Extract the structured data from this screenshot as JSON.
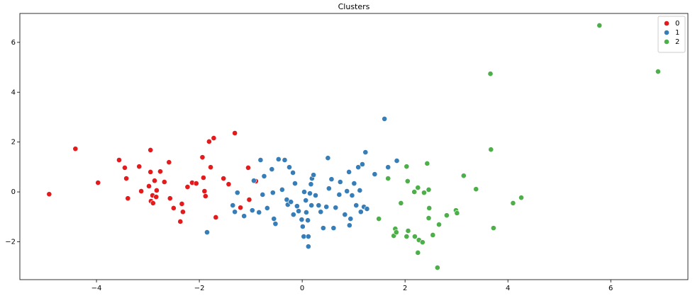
{
  "chart_data": {
    "type": "scatter",
    "title": "Clusters",
    "xlim": [
      -5.49,
      7.5
    ],
    "ylim": [
      -3.52,
      7.16
    ],
    "xticks": [
      {
        "value": -4,
        "label": "−4"
      },
      {
        "value": -2,
        "label": "−2"
      },
      0,
      2,
      4,
      6
    ],
    "yticks": [
      {
        "value": -2,
        "label": "−2"
      },
      0,
      2,
      4,
      6
    ],
    "grid": false,
    "legend": "upper right",
    "series": [
      {
        "name": "0",
        "color": "#e41a1c",
        "x": [
          -4.92,
          -4.41,
          -3.97,
          -3.56,
          -3.45,
          -3.42,
          -3.39,
          -3.17,
          -3.13,
          -2.95,
          -2.98,
          -2.95,
          -2.91,
          -2.94,
          -2.87,
          -2.9,
          -2.83,
          -2.84,
          -2.76,
          -2.59,
          -2.68,
          -2.57,
          -2.5,
          -2.37,
          -2.34,
          -2.32,
          -2.23,
          -2.14,
          -2.06,
          -1.94,
          -1.92,
          -1.9,
          -1.88,
          -1.78,
          -1.72,
          -1.81,
          -1.68,
          -1.53,
          -1.43,
          -1.31,
          -1.2,
          -1.05,
          -1.03,
          -0.9
        ],
        "values": [
          -0.09,
          1.73,
          0.37,
          1.28,
          0.97,
          0.54,
          -0.26,
          1.02,
          0.03,
          1.68,
          0.23,
          0.8,
          -0.14,
          -0.37,
          0.45,
          -0.45,
          0.06,
          -0.2,
          0.82,
          1.19,
          0.4,
          -0.26,
          -0.65,
          -1.19,
          -0.48,
          -0.8,
          0.2,
          0.37,
          0.34,
          1.39,
          0.57,
          0.03,
          -0.17,
          0.99,
          2.16,
          2.02,
          -1.02,
          0.54,
          0.31,
          2.36,
          -0.63,
          0.97,
          -0.31,
          0.43
        ]
      },
      {
        "name": "1",
        "color": "#377eb8",
        "x": [
          -1.85,
          -1.35,
          -1.31,
          -1.26,
          -1.13,
          -0.97,
          -0.94,
          -0.84,
          -0.81,
          -0.77,
          -0.74,
          -0.68,
          -0.59,
          -0.57,
          -0.55,
          -0.52,
          -0.46,
          -0.39,
          -0.34,
          -0.3,
          -0.28,
          -0.25,
          -0.22,
          -0.18,
          -0.17,
          -0.14,
          -0.1,
          -0.07,
          -0.01,
          0.01,
          0.04,
          0.03,
          0.07,
          0.08,
          0.11,
          0.12,
          0.12,
          0.15,
          0.17,
          0.18,
          0.19,
          0.22,
          0.26,
          0.32,
          0.36,
          0.41,
          0.47,
          0.5,
          0.52,
          0.57,
          0.61,
          0.65,
          0.72,
          0.74,
          0.83,
          0.87,
          0.91,
          0.92,
          0.94,
          0.97,
          1.01,
          1.05,
          1.09,
          1.12,
          1.14,
          1.17,
          1.2,
          1.23,
          1.26,
          1.41,
          1.6,
          1.67,
          1.84
        ],
        "values": [
          -1.62,
          -0.54,
          -0.8,
          -0.03,
          -0.97,
          -0.74,
          0.45,
          -0.82,
          1.28,
          -0.11,
          0.63,
          -0.65,
          0.91,
          -0.03,
          -1.08,
          -1.28,
          1.31,
          0.09,
          1.28,
          -0.31,
          -0.51,
          0.99,
          -0.4,
          0.77,
          -0.91,
          0.34,
          -0.57,
          -0.77,
          -1.11,
          -1.39,
          0.0,
          -1.79,
          -0.34,
          -0.82,
          -1.14,
          -1.79,
          -2.19,
          -0.06,
          0.31,
          -0.54,
          0.54,
          0.68,
          -0.14,
          -0.54,
          -0.8,
          -1.45,
          -0.6,
          1.36,
          0.14,
          0.51,
          -1.45,
          -0.63,
          -0.11,
          0.4,
          -0.91,
          0.03,
          0.8,
          -1.34,
          -1.08,
          -0.14,
          0.34,
          -0.54,
          0.99,
          0.06,
          -0.8,
          1.11,
          -0.6,
          1.59,
          -0.68,
          0.71,
          2.93,
          0.99,
          1.25
        ]
      },
      {
        "name": "2",
        "color": "#4daf4a",
        "x": [
          1.49,
          1.67,
          1.78,
          1.81,
          1.83,
          1.92,
          2.03,
          2.03,
          2.05,
          2.06,
          2.18,
          2.19,
          2.25,
          2.25,
          2.27,
          2.34,
          2.37,
          2.43,
          2.46,
          2.46,
          2.47,
          2.54,
          2.63,
          2.66,
          2.81,
          2.99,
          3.01,
          3.14,
          3.38,
          3.66,
          3.67,
          3.72,
          4.1,
          4.26,
          5.78,
          6.92
        ],
        "values": [
          -1.08,
          0.54,
          -1.76,
          -1.48,
          -1.62,
          -0.45,
          1.02,
          -1.79,
          0.43,
          -1.56,
          0.0,
          -1.79,
          0.17,
          -2.44,
          -1.93,
          -2.02,
          -0.03,
          1.14,
          0.09,
          -1.05,
          -0.65,
          -1.73,
          -3.04,
          -1.31,
          -0.94,
          -0.74,
          -0.85,
          0.65,
          0.11,
          4.74,
          1.7,
          -1.45,
          -0.45,
          -0.23,
          6.68,
          4.83
        ]
      }
    ]
  }
}
